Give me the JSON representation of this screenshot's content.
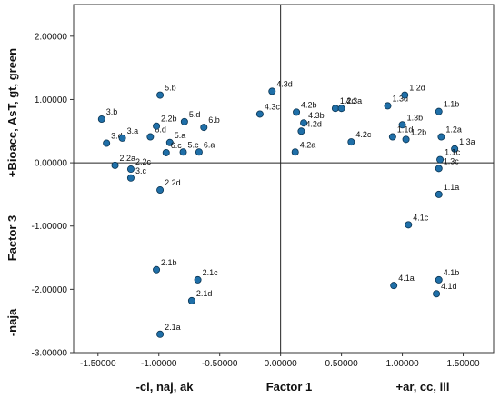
{
  "chart_data": {
    "type": "scatter",
    "xlabel": {
      "left": "-cl, naj, ak",
      "center": "Factor 1",
      "right": "+ar, cc, ill"
    },
    "ylabel": {
      "top": "+Bioacc, AsT, gt, green",
      "center": "Factor 3",
      "bottom": "-naja"
    },
    "xlim": [
      -1.7,
      1.75
    ],
    "ylim": [
      -3.0,
      2.5
    ],
    "xticks": [
      -1.5,
      -1.0,
      -0.5,
      0.0,
      0.5,
      1.0,
      1.5
    ],
    "xtick_labels": [
      "-1.50000",
      "-1.00000",
      "-0.50000",
      "0.00000",
      "0.50000",
      "1.00000",
      "1.50000"
    ],
    "yticks": [
      2.0,
      1.0,
      0.0,
      -1.0,
      -2.0,
      -3.0
    ],
    "ytick_labels": [
      "2.00000",
      "1.00000",
      "0.00000",
      "-1.00000",
      "-2.00000",
      "-3.00000"
    ],
    "grid": false,
    "reference_lines": {
      "x": 0.0,
      "y": 0.0
    },
    "marker_color": "#1f6fa8",
    "points": [
      {
        "label": "3.b",
        "x": -1.47,
        "y": 0.69
      },
      {
        "label": "3.d",
        "x": -1.43,
        "y": 0.31
      },
      {
        "label": "3.a",
        "x": -1.3,
        "y": 0.39
      },
      {
        "label": "2.2a",
        "x": -1.36,
        "y": -0.04
      },
      {
        "label": "2.2c",
        "x": -1.23,
        "y": -0.1
      },
      {
        "label": "3.c",
        "x": -1.23,
        "y": -0.24
      },
      {
        "label": "6.d",
        "x": -1.07,
        "y": 0.41
      },
      {
        "label": "2.2b",
        "x": -1.02,
        "y": 0.58
      },
      {
        "label": "5.b",
        "x": -0.99,
        "y": 1.07
      },
      {
        "label": "5.a",
        "x": -0.91,
        "y": 0.32
      },
      {
        "label": "5.d",
        "x": -0.79,
        "y": 0.65
      },
      {
        "label": "5.c",
        "x": -0.8,
        "y": 0.17
      },
      {
        "label": "2.2d",
        "x": -0.99,
        "y": -0.43
      },
      {
        "label": "6.c",
        "x": -0.94,
        "y": 0.16
      },
      {
        "label": "6.b",
        "x": -0.63,
        "y": 0.56
      },
      {
        "label": "6.a",
        "x": -0.67,
        "y": 0.17
      },
      {
        "label": "4.3d",
        "x": -0.07,
        "y": 1.13
      },
      {
        "label": "4.3c",
        "x": -0.17,
        "y": 0.77
      },
      {
        "label": "4.2b",
        "x": 0.13,
        "y": 0.8
      },
      {
        "label": "4.2d",
        "x": 0.17,
        "y": 0.5
      },
      {
        "label": "4.2a",
        "x": 0.12,
        "y": 0.17
      },
      {
        "label": "4.3b",
        "x": 0.19,
        "y": 0.63
      },
      {
        "label": "1.2c",
        "x": 0.45,
        "y": 0.86
      },
      {
        "label": "4.3a",
        "x": 0.5,
        "y": 0.86
      },
      {
        "label": "4.2c",
        "x": 0.58,
        "y": 0.33
      },
      {
        "label": "1.3d",
        "x": 0.88,
        "y": 0.9
      },
      {
        "label": "1.2d",
        "x": 1.02,
        "y": 1.07
      },
      {
        "label": "1.3b",
        "x": 1.0,
        "y": 0.6
      },
      {
        "label": "1.1d",
        "x": 0.92,
        "y": 0.41
      },
      {
        "label": "1.2b",
        "x": 1.03,
        "y": 0.37
      },
      {
        "label": "1.1b",
        "x": 1.3,
        "y": 0.81
      },
      {
        "label": "1.2a",
        "x": 1.32,
        "y": 0.41
      },
      {
        "label": "1.3a",
        "x": 1.43,
        "y": 0.22
      },
      {
        "label": "1.1c",
        "x": 1.31,
        "y": 0.05
      },
      {
        "label": "1.3c",
        "x": 1.3,
        "y": -0.09
      },
      {
        "label": "1.1a",
        "x": 1.3,
        "y": -0.5
      },
      {
        "label": "4.1c",
        "x": 1.05,
        "y": -0.98
      },
      {
        "label": "4.1a",
        "x": 0.93,
        "y": -1.94
      },
      {
        "label": "4.1b",
        "x": 1.3,
        "y": -1.85
      },
      {
        "label": "4.1d",
        "x": 1.28,
        "y": -2.07
      },
      {
        "label": "2.1b",
        "x": -1.02,
        "y": -1.69
      },
      {
        "label": "2.1c",
        "x": -0.68,
        "y": -1.85
      },
      {
        "label": "2.1d",
        "x": -0.73,
        "y": -2.18
      },
      {
        "label": "2.1a",
        "x": -0.99,
        "y": -2.71
      }
    ]
  }
}
